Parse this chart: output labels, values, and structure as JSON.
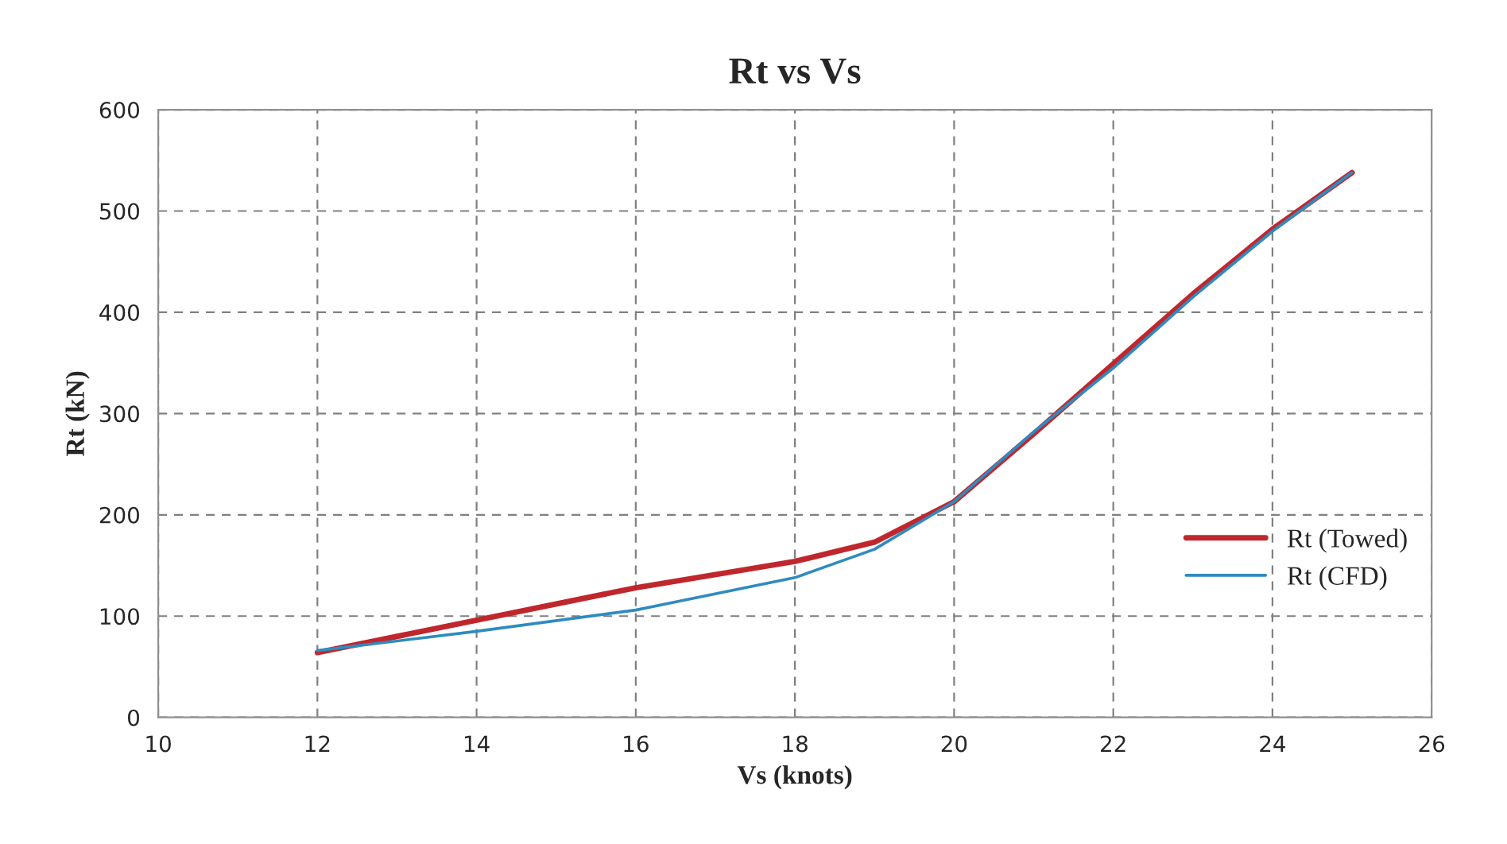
{
  "chart_data": {
    "type": "line",
    "title": "Rt vs Vs",
    "xlabel": "Vs (knots)",
    "ylabel": "Rt (kN)",
    "x": [
      12,
      14,
      16,
      18,
      19,
      20,
      21,
      22,
      23,
      24,
      25
    ],
    "series": [
      {
        "name": "Rt (Towed)",
        "color": "#c0272d",
        "values": [
          64,
          96,
          128,
          154,
          173,
          213,
          280,
          349,
          418,
          482,
          538
        ]
      },
      {
        "name": "Rt (CFD)",
        "color": "#2e8bc0",
        "values": [
          66,
          85,
          106,
          138,
          166,
          213,
          282,
          345,
          415,
          480,
          538
        ]
      }
    ],
    "xlim": [
      10,
      26
    ],
    "xticks": [
      10,
      12,
      14,
      16,
      18,
      20,
      22,
      24,
      26
    ],
    "ylim": [
      0,
      600
    ],
    "yticks": [
      0,
      100,
      200,
      300,
      400,
      500,
      600
    ],
    "grid": true,
    "legend": "right",
    "marker": "none",
    "line_style": "solid"
  }
}
